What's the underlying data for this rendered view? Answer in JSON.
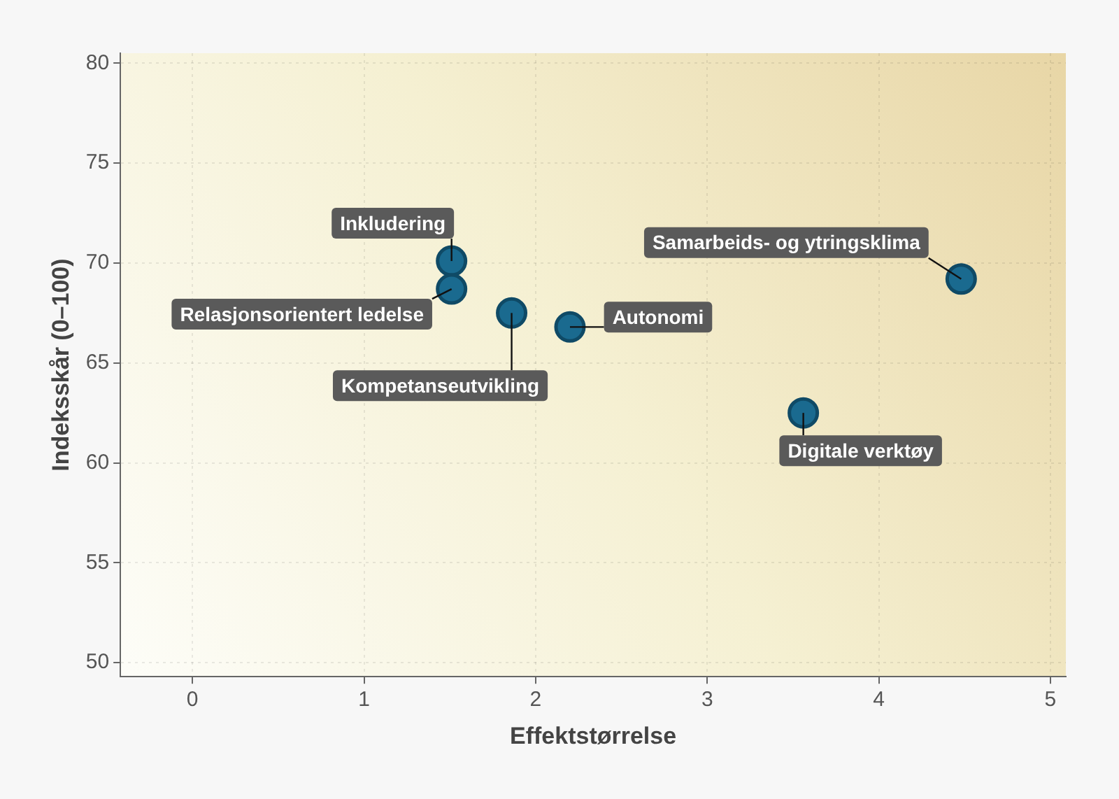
{
  "chart_data": {
    "type": "scatter",
    "xlabel": "Effektstørrelse",
    "ylabel": "Indeksskår (0–100)",
    "x": [
      1.51,
      1.51,
      1.86,
      2.2,
      4.48,
      3.56
    ],
    "series": [
      {
        "color": "#1a6a8f",
        "values": [
          70.1,
          68.7,
          67.5,
          66.8,
          69.2,
          62.5
        ]
      }
    ],
    "xlim": [
      -0.42,
      5.09
    ],
    "xticks": [
      0,
      1,
      2,
      3,
      4,
      5
    ],
    "ylim": [
      49.3,
      80.5
    ],
    "yticks": [
      50,
      55,
      60,
      65,
      70,
      75,
      80
    ],
    "grid": true,
    "legend": false,
    "marker": "circle",
    "annotations": [
      {
        "text": "Inkludering",
        "x": 1.51,
        "y": 70.1
      },
      {
        "text": "Relasjonsorientert ledelse",
        "x": 1.51,
        "y": 68.7
      },
      {
        "text": "Kompetanseutvikling",
        "x": 1.86,
        "y": 67.5
      },
      {
        "text": "Autonomi",
        "x": 2.2,
        "y": 66.8
      },
      {
        "text": "Samarbeids- og ytringsklima",
        "x": 4.48,
        "y": 69.2
      },
      {
        "text": "Digitale verktøy",
        "x": 3.56,
        "y": 62.5
      }
    ]
  }
}
